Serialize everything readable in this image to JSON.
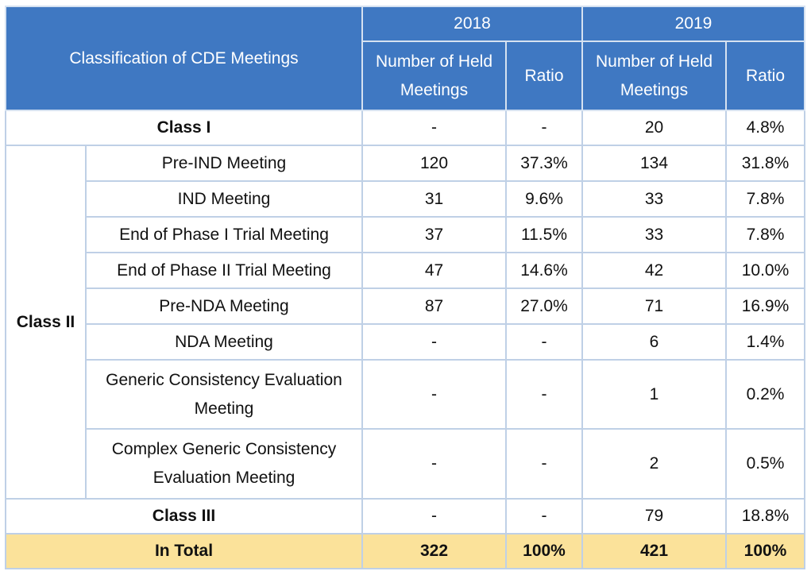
{
  "header": {
    "classification": "Classification of CDE Meetings",
    "year_a": "2018",
    "year_b": "2019",
    "held_a": "Number of Held Meetings",
    "ratio_a": "Ratio",
    "held_b": "Number of Held Meetings",
    "ratio_b": "Ratio"
  },
  "rows": {
    "class1": {
      "label": "Class I",
      "a_num": "-",
      "a_ratio": "-",
      "b_num": "20",
      "b_ratio": "4.8%"
    },
    "class2_label": "Class II",
    "class2": [
      {
        "label": "Pre-IND Meeting",
        "a_num": "120",
        "a_ratio": "37.3%",
        "b_num": "134",
        "b_ratio": "31.8%"
      },
      {
        "label": "IND Meeting",
        "a_num": "31",
        "a_ratio": "9.6%",
        "b_num": "33",
        "b_ratio": "7.8%"
      },
      {
        "label": "End of Phase I Trial Meeting",
        "a_num": "37",
        "a_ratio": "11.5%",
        "b_num": "33",
        "b_ratio": "7.8%"
      },
      {
        "label": "End of Phase II Trial Meeting",
        "a_num": "47",
        "a_ratio": "14.6%",
        "b_num": "42",
        "b_ratio": "10.0%"
      },
      {
        "label": "Pre-NDA Meeting",
        "a_num": "87",
        "a_ratio": "27.0%",
        "b_num": "71",
        "b_ratio": "16.9%"
      },
      {
        "label": "NDA Meeting",
        "a_num": "-",
        "a_ratio": "-",
        "b_num": "6",
        "b_ratio": "1.4%"
      },
      {
        "label": "Generic Consistency Evaluation Meeting",
        "a_num": "-",
        "a_ratio": "-",
        "b_num": "1",
        "b_ratio": "0.2%"
      },
      {
        "label": "Complex Generic Consistency Evaluation Meeting",
        "a_num": "-",
        "a_ratio": "-",
        "b_num": "2",
        "b_ratio": "0.5%"
      }
    ],
    "class3": {
      "label": "Class III",
      "a_num": "-",
      "a_ratio": "-",
      "b_num": "79",
      "b_ratio": "18.8%"
    },
    "total": {
      "label": "In Total",
      "a_num": "322",
      "a_ratio": "100%",
      "b_num": "421",
      "b_ratio": "100%"
    }
  },
  "colors": {
    "header_bg": "#3f78c2",
    "total_bg": "#fbe29a",
    "grid": "#bfd0e6"
  }
}
